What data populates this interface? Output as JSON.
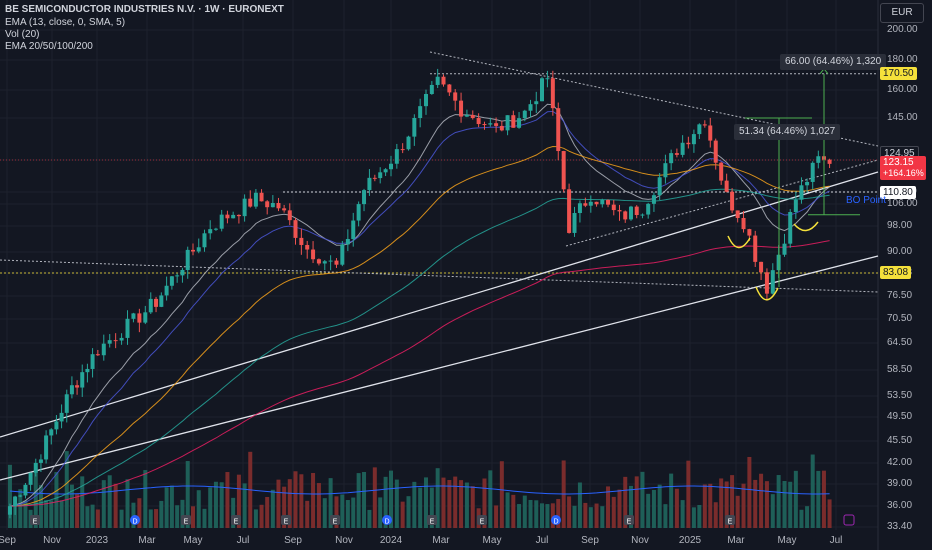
{
  "header": {
    "title": "BE SEMICONDUCTOR INDUSTRIES N.V. · 1W · EURONEXT",
    "ind1": "EMA (13, close, 0, SMA, 5)",
    "ind2": "Vol (20)",
    "ind3": "EMA 20/50/100/200",
    "currency": "EUR"
  },
  "colors": {
    "up": "#26a69a",
    "down": "#ef5350",
    "ema13": "#b2b5be",
    "ema20": "#4a56d6",
    "ema50": "#f7a21b",
    "ema100": "#26a69a",
    "ema200": "#e91e63",
    "trend": "#e0e3eb",
    "bg": "#131722"
  },
  "y_axis_labels": [
    "200.00",
    "180.00",
    "160.00",
    "145.00",
    "124.95",
    "110.80",
    "106.00",
    "98.00",
    "90.00",
    "83.08",
    "76.50",
    "70.50",
    "64.50",
    "58.50",
    "53.50",
    "49.50",
    "45.50",
    "42.00",
    "39.00",
    "36.00",
    "33.40"
  ],
  "x_axis_labels": [
    "Sep",
    "Nov",
    "2023",
    "Mar",
    "May",
    "Jul",
    "Sep",
    "Nov",
    "2024",
    "Mar",
    "May",
    "Jul",
    "Sep",
    "Nov",
    "2025",
    "Mar",
    "May",
    "Jul"
  ],
  "tags": {
    "level1": "170.50",
    "level2": "124.95",
    "last_price": "123.15",
    "last_change": "+164.16%",
    "level3": "110.80",
    "level4": "83.08"
  },
  "callouts": {
    "top": "66.00 (64.46%) 1,320",
    "mid": "51.34 (64.46%) 1,027"
  },
  "bo_label": "BO Point",
  "event_markers": [
    "E",
    "D",
    "E",
    "E",
    "E",
    "E",
    "D",
    "E",
    "E",
    "D",
    "E",
    "E"
  ],
  "chart_data": {
    "type": "candlestick",
    "title": "BE SEMICONDUCTOR INDUSTRIES N.V. · 1W · EURONEXT",
    "y_scale": "log",
    "ylim": [
      33.4,
      200
    ],
    "x_range": [
      "2022-09",
      "2025-07"
    ],
    "key_levels": [
      170.5,
      124.95,
      110.8,
      83.08
    ],
    "last_price": 123.15,
    "anchors": [
      {
        "date": "2022-09-05",
        "price": 36
      },
      {
        "date": "2022-10-10",
        "price": 42
      },
      {
        "date": "2022-11-28",
        "price": 55
      },
      {
        "date": "2023-01-02",
        "price": 63
      },
      {
        "date": "2023-03-13",
        "price": 75
      },
      {
        "date": "2023-05-22",
        "price": 98
      },
      {
        "date": "2023-07-17",
        "price": 108
      },
      {
        "date": "2023-08-14",
        "price": 105
      },
      {
        "date": "2023-09-18",
        "price": 91
      },
      {
        "date": "2023-10-23",
        "price": 85
      },
      {
        "date": "2023-11-27",
        "price": 112
      },
      {
        "date": "2024-01-08",
        "price": 128
      },
      {
        "date": "2024-02-26",
        "price": 165
      },
      {
        "date": "2024-03-25",
        "price": 150
      },
      {
        "date": "2024-05-06",
        "price": 139
      },
      {
        "date": "2024-06-10",
        "price": 148
      },
      {
        "date": "2024-07-08",
        "price": 168
      },
      {
        "date": "2024-08-05",
        "price": 98
      },
      {
        "date": "2024-09-02",
        "price": 110
      },
      {
        "date": "2024-10-07",
        "price": 101
      },
      {
        "date": "2024-11-04",
        "price": 105
      },
      {
        "date": "2024-12-16",
        "price": 130
      },
      {
        "date": "2025-01-20",
        "price": 145
      },
      {
        "date": "2025-02-17",
        "price": 109
      },
      {
        "date": "2025-03-10",
        "price": 100
      },
      {
        "date": "2025-04-07",
        "price": 79
      },
      {
        "date": "2025-05-12",
        "price": 108
      },
      {
        "date": "2025-06-09",
        "price": 125
      },
      {
        "date": "2025-06-23",
        "price": 123.15
      }
    ],
    "series": [
      {
        "name": "EMA 13"
      },
      {
        "name": "EMA 20"
      },
      {
        "name": "EMA 50"
      },
      {
        "name": "EMA 100"
      },
      {
        "name": "EMA 200"
      },
      {
        "name": "Vol (20)"
      }
    ]
  }
}
